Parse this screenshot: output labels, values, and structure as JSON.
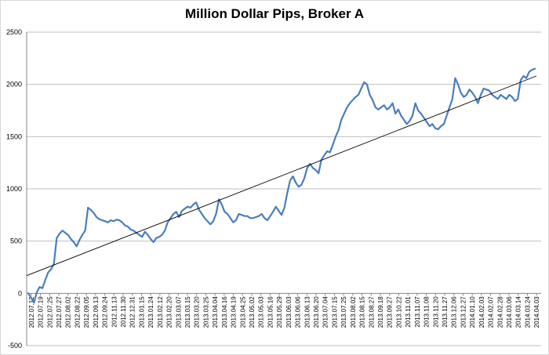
{
  "chart_data": {
    "type": "line",
    "title": "Million Dollar Pips, Broker A",
    "xlabel": "",
    "ylabel": "",
    "ylim": [
      -500,
      2500
    ],
    "yticks": [
      -500,
      0,
      500,
      1000,
      1500,
      2000,
      2500
    ],
    "grid": "horizontal",
    "legend": "none",
    "colors": {
      "series": "#4a7ebb",
      "trend": "#000000",
      "grid": "#bfbfbf",
      "axis": "#868686"
    },
    "x_tick_labels": [
      "2012.07.12",
      "2012.07.19",
      "2012.07.25",
      "2012.07.27",
      "2012.08.02",
      "2012.08.22",
      "2012.09.05",
      "2012.09.13",
      "2012.09.24",
      "2012.11.13",
      "2012.11.30",
      "2012.12.31",
      "2013.01.15",
      "2013.01.24",
      "2013.02.12",
      "2013.02.20",
      "2013.03.07",
      "2013.03.15",
      "2013.03.20",
      "2013.03.25",
      "2013.04.04",
      "2013.04.16",
      "2013.04.19",
      "2013.04.25",
      "2013.05.02",
      "2013.05.03",
      "2013.05.16",
      "2013.05.29",
      "2013.06.03",
      "2013.06.06",
      "2013.06.13",
      "2013.06.20",
      "2013.07.04",
      "2013.07.15",
      "2013.07.25",
      "2013.08.02",
      "2013.08.15",
      "2013.08.27",
      "2013.09.18",
      "2013.09.27",
      "2013.10.22",
      "2013.11.01",
      "2013.11.07",
      "2013.11.08",
      "2013.11.20",
      "2013.11.27",
      "2013.12.06",
      "2013.12.27",
      "2014.01.10",
      "2014.02.03",
      "2014.02.07",
      "2014.02.28",
      "2014.03.06",
      "2014.03.14",
      "2014.03.24",
      "2014.04.03"
    ],
    "series": [
      {
        "values": [
          0,
          -40,
          -90,
          10,
          60,
          50,
          130,
          200,
          230,
          280,
          530,
          570,
          600,
          580,
          560,
          520,
          490,
          450,
          510,
          560,
          600,
          820,
          800,
          770,
          730,
          710,
          700,
          690,
          680,
          700,
          690,
          705,
          700,
          680,
          650,
          640,
          610,
          600,
          580,
          560,
          540,
          590,
          560,
          520,
          490,
          530,
          540,
          560,
          600,
          680,
          720,
          760,
          780,
          730,
          790,
          810,
          830,
          820,
          850,
          870,
          800,
          760,
          720,
          690,
          660,
          690,
          760,
          900,
          850,
          780,
          760,
          720,
          680,
          700,
          760,
          750,
          740,
          740,
          720,
          720,
          730,
          740,
          760,
          720,
          700,
          740,
          780,
          830,
          790,
          750,
          820,
          960,
          1080,
          1120,
          1060,
          1020,
          1040,
          1100,
          1200,
          1240,
          1200,
          1180,
          1150,
          1280,
          1320,
          1360,
          1350,
          1420,
          1500,
          1560,
          1660,
          1720,
          1780,
          1820,
          1850,
          1880,
          1900,
          1960,
          2020,
          2000,
          1900,
          1850,
          1780,
          1760,
          1780,
          1800,
          1760,
          1780,
          1820,
          1720,
          1760,
          1700,
          1660,
          1620,
          1650,
          1700,
          1820,
          1750,
          1720,
          1680,
          1640,
          1600,
          1620,
          1580,
          1570,
          1600,
          1620,
          1700,
          1780,
          1860,
          2060,
          2000,
          1920,
          1880,
          1900,
          1950,
          1920,
          1880,
          1820,
          1900,
          1960,
          1950,
          1940,
          1900,
          1880,
          1860,
          1900,
          1880,
          1860,
          1900,
          1880,
          1840,
          1860,
          2040,
          2080,
          2060,
          2120,
          2140,
          2150
        ]
      },
      {
        "name": "",
        "values": [
          170,
          2080
        ]
      }
    ]
  }
}
